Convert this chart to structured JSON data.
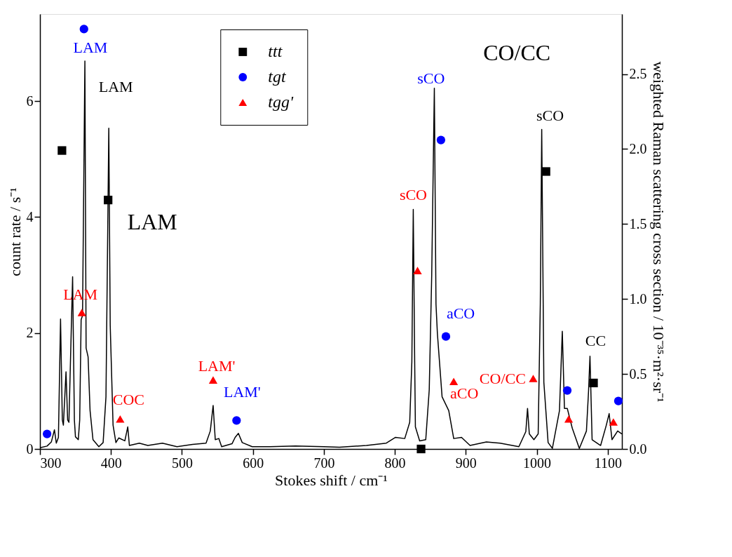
{
  "chart_data": {
    "type": "line",
    "xlabel": "Stokes shift / cm⁻¹",
    "ylabel": "count rate / s⁻¹",
    "y2label": "weighted Raman scattering cross section / 10⁻³⁵·m²·sr⁻¹",
    "xlim": [
      300,
      1120
    ],
    "xticks": [
      300,
      400,
      500,
      600,
      700,
      800,
      900,
      1000,
      1100
    ],
    "ylim": [
      0,
      7.5
    ],
    "yticks": [
      0,
      2,
      4,
      6
    ],
    "y2lim": [
      0,
      2.9
    ],
    "y2ticks": [
      {
        "value": 0,
        "label": "0.0"
      },
      {
        "value": 0.5,
        "label": "0.5"
      },
      {
        "value": 1,
        "label": "1.0"
      },
      {
        "value": 1.5,
        "label": "1.5"
      },
      {
        "value": 2,
        "label": "2.0"
      },
      {
        "value": 2.5,
        "label": "2.5"
      }
    ],
    "grid": false,
    "legend": "top",
    "series": [
      {
        "color": "#000000",
        "marker": "none",
        "line_style": "solid",
        "x": [
          300,
          310,
          316,
          320.4,
          323,
          326,
          329,
          331.5,
          333,
          336.7,
          339,
          340.8,
          346,
          348.5,
          350,
          354,
          356,
          358,
          360,
          363.3,
          365,
          367.8,
          370.6,
          374.7,
          383,
          389,
          393,
          397,
          399,
          403,
          407,
          411,
          419.6,
          423.7,
          426,
          440,
          452,
          472.6,
          493,
          515,
          534,
          540,
          544,
          547,
          552,
          556,
          570.6,
          575,
          579.6,
          585,
          599,
          624,
          660,
          700,
          722,
          760,
          788,
          801,
          814,
          821,
          824,
          826,
          828,
          829,
          835,
          843.6,
          848.5,
          852,
          855.7,
          858,
          860,
          866.6,
          876,
          883,
          894,
          906,
          929,
          948.5,
          974.8,
          984.6,
          987,
          989.5,
          996,
          1002,
          1005,
          1007,
          1010,
          1016,
          1022,
          1032,
          1036,
          1039,
          1043,
          1050,
          1060,
          1070,
          1073,
          1075,
          1078,
          1090,
          1098,
          1102,
          1106,
          1114,
          1120
        ],
        "values": [
          0.02,
          0.05,
          0.12,
          0.33,
          0.1,
          0.2,
          2.24,
          0.5,
          0.41,
          1.33,
          0.5,
          0.46,
          2.97,
          0.5,
          0.21,
          0.16,
          0.5,
          2.23,
          2.3,
          6.69,
          1.74,
          1.59,
          0.66,
          0.16,
          0.04,
          0.11,
          0.9,
          5.53,
          2.13,
          0.41,
          0.11,
          0.19,
          0.14,
          0.38,
          0.06,
          0.1,
          0.06,
          0.1,
          0.04,
          0.08,
          0.1,
          0.31,
          0.75,
          0.16,
          0.18,
          0.04,
          0.09,
          0.2,
          0.27,
          0.11,
          0.04,
          0.04,
          0.05,
          0.04,
          0.03,
          0.06,
          0.1,
          0.2,
          0.18,
          0.46,
          1.5,
          4.13,
          1.5,
          0.38,
          0.14,
          0.16,
          1.02,
          3.0,
          6.22,
          2.5,
          1.99,
          0.9,
          0.66,
          0.18,
          0.2,
          0.06,
          0.12,
          0.1,
          0.04,
          0.3,
          0.7,
          0.26,
          0.16,
          0.26,
          2.5,
          5.51,
          1.15,
          0.11,
          0.01,
          0.66,
          2.03,
          0.7,
          0.7,
          0.36,
          0.01,
          0.31,
          1.0,
          1.6,
          0.16,
          0.06,
          0.41,
          0.61,
          0.16,
          0.31,
          0.26
        ]
      },
      {
        "type": "scatter",
        "name": "ttt",
        "color": "#000000",
        "marker": "square",
        "axis": "y2",
        "x": [
          331,
          396,
          837,
          1013,
          1080
        ],
        "values": [
          1.99,
          1.66,
          0.0,
          1.85,
          0.44
        ]
      },
      {
        "type": "scatter",
        "name": "tgt",
        "color": "#0000ff",
        "marker": "circle",
        "axis": "y2",
        "x": [
          310,
          362,
          577,
          865,
          872,
          1043,
          1115
        ],
        "values": [
          0.1,
          2.8,
          0.19,
          2.06,
          0.75,
          0.39,
          0.32
        ]
      },
      {
        "type": "scatter",
        "name": "tgg'",
        "color": "#ff0000",
        "marker": "triangle",
        "axis": "y2",
        "x": [
          359,
          413,
          544,
          832,
          883,
          995,
          1045,
          1108
        ],
        "values": [
          0.91,
          0.2,
          0.46,
          1.19,
          0.45,
          0.47,
          0.2,
          0.18
        ]
      }
    ],
    "annotations": [
      "LAM",
      {
        "text": "LAM",
        "x": 397,
        "y": 5.53
      },
      "LAM",
      "LAM",
      {
        "text": "COC",
        "x": 413,
        "y": 0.2
      },
      "LAM'",
      {
        "text": "LAM'",
        "x": 577,
        "y": 0.19
      },
      "sCO",
      "sCO",
      "aCO",
      {
        "text": "aCO",
        "x": 883,
        "y": 0.45
      },
      "CO/CC",
      "CO/CC",
      {
        "text": "sCO",
        "x": 1007,
        "y": 5.51
      },
      {
        "text": "CC",
        "x": 1075,
        "y": 1.6
      }
    ]
  }
}
